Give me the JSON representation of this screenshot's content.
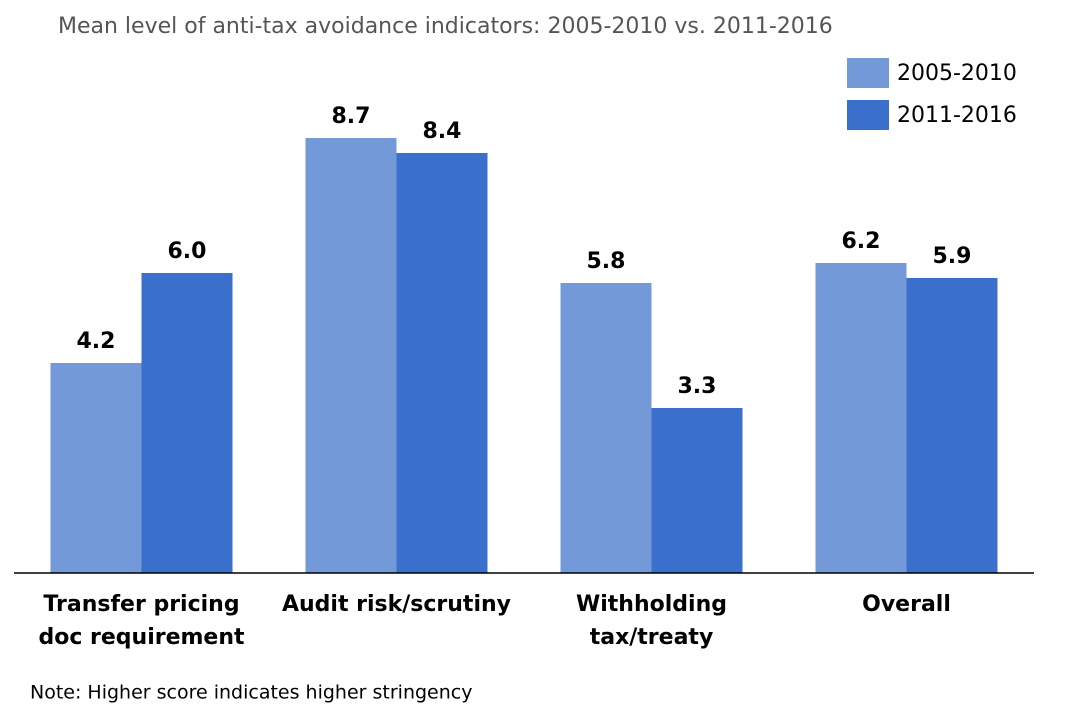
{
  "chart_data": {
    "type": "bar",
    "title": "Mean level of anti-tax avoidance indicators: 2005-2010 vs. 2011-2016",
    "note": "Note: Higher score indicates higher stringency",
    "categories": [
      "Transfer pricing doc requirement",
      "Audit risk/scrutiny",
      "Withholding tax/treaty",
      "Overall"
    ],
    "series": [
      {
        "name": "2005-2010",
        "color": "#7399d8",
        "values": [
          4.2,
          8.7,
          5.8,
          6.2
        ],
        "value_labels": [
          "4.2",
          "8.7",
          "5.8",
          "6.2"
        ]
      },
      {
        "name": "2011-2016",
        "color": "#3a6fcc",
        "values": [
          6.0,
          8.4,
          3.3,
          5.9
        ],
        "value_labels": [
          "6.0",
          "8.4",
          "3.3",
          "5.9"
        ]
      }
    ],
    "ylim": [
      0,
      10
    ],
    "legend": "top-right"
  }
}
